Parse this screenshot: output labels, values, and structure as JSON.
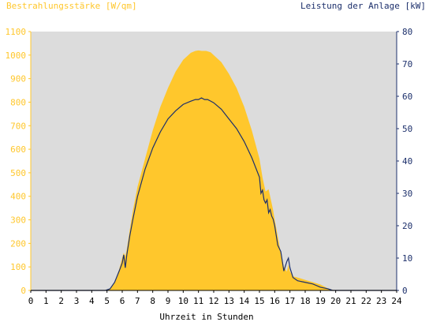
{
  "chart_data": {
    "type": "area",
    "title_left": "Bestrahlungsstärke [W/qm]",
    "title_right": "Leistung der Anlage [kW]",
    "xlabel": "Uhrzeit in Stunden",
    "xlim": [
      0,
      24
    ],
    "ylim_left": [
      0,
      1100
    ],
    "ylim_right": [
      0,
      80
    ],
    "x_ticks": [
      "0",
      "1",
      "2",
      "3",
      "4",
      "5",
      "6",
      "7",
      "8",
      "9",
      "10",
      "11",
      "12",
      "13",
      "14",
      "15",
      "16",
      "17",
      "18",
      "19",
      "20",
      "21",
      "22",
      "23",
      "24"
    ],
    "y_left_ticks": [
      "0",
      "100",
      "200",
      "300",
      "400",
      "500",
      "600",
      "700",
      "800",
      "900",
      "1000",
      "1100"
    ],
    "y_right_ticks": [
      "0",
      "10",
      "20",
      "30",
      "40",
      "50",
      "60",
      "70",
      "80"
    ],
    "grid": false,
    "colors": {
      "plot_bg": "#dcdcdc",
      "irradiance": "#ffc72c",
      "power": "#1c2f6b",
      "axis_left": "#ffc72c",
      "axis_right": "#1c2f6b"
    },
    "series": [
      {
        "axis": "left",
        "style": "area",
        "x": [
          0,
          4.9,
          5.2,
          5.5,
          5.8,
          6.0,
          6.1,
          6.2,
          6.3,
          6.5,
          6.7,
          7.0,
          7.5,
          8.0,
          8.5,
          9.0,
          9.5,
          10.0,
          10.5,
          10.8,
          11.0,
          11.2,
          11.5,
          11.8,
          12.0,
          12.5,
          13.0,
          13.5,
          14.0,
          14.5,
          15.0,
          15.2,
          15.4,
          15.6,
          15.7,
          15.8,
          15.9,
          16.0,
          16.2,
          16.4,
          16.6,
          16.8,
          16.9,
          17.0,
          17.2,
          17.5,
          18.0,
          18.5,
          19.0,
          19.3,
          19.6,
          20.0,
          24
        ],
        "y": [
          0,
          0,
          8,
          35,
          90,
          140,
          160,
          145,
          175,
          260,
          340,
          440,
          560,
          680,
          780,
          860,
          930,
          980,
          1010,
          1018,
          1020,
          1018,
          1018,
          1012,
          1000,
          970,
          920,
          860,
          780,
          680,
          560,
          480,
          420,
          430,
          400,
          370,
          340,
          300,
          230,
          160,
          100,
          80,
          110,
          80,
          60,
          55,
          45,
          35,
          25,
          15,
          5,
          0,
          0
        ]
      },
      {
        "axis": "right",
        "style": "line",
        "x": [
          0,
          4.9,
          5.2,
          5.5,
          5.8,
          6.0,
          6.1,
          6.2,
          6.3,
          6.5,
          6.7,
          7.0,
          7.5,
          8.0,
          8.5,
          9.0,
          9.5,
          10.0,
          10.5,
          10.8,
          11.0,
          11.2,
          11.4,
          11.6,
          11.8,
          12.0,
          12.5,
          13.0,
          13.5,
          14.0,
          14.5,
          15.0,
          15.1,
          15.2,
          15.3,
          15.4,
          15.5,
          15.6,
          15.7,
          15.8,
          15.9,
          16.0,
          16.2,
          16.4,
          16.6,
          16.8,
          16.9,
          17.0,
          17.2,
          17.5,
          18.0,
          18.5,
          19.0,
          19.5,
          19.8,
          20.0,
          24
        ],
        "y": [
          0,
          0,
          0.5,
          2.5,
          6,
          8.5,
          11,
          7,
          11,
          17,
          22,
          29,
          37.5,
          44,
          49,
          53,
          55.5,
          57.5,
          58.5,
          59,
          59,
          59.5,
          59,
          59,
          58.5,
          58,
          56,
          53,
          50,
          46,
          41,
          35,
          30,
          31,
          28,
          27,
          28,
          24,
          25,
          23,
          22,
          20,
          14,
          12,
          6,
          9,
          10,
          7,
          4,
          3,
          2.5,
          2,
          1,
          0.5,
          0,
          0,
          0
        ]
      }
    ]
  }
}
